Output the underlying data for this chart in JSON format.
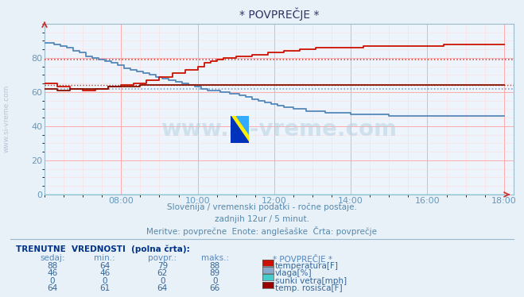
{
  "title": "* POVPREČJE *",
  "fig_bg_color": "#e8f0f8",
  "plot_bg_color": "#eef4fb",
  "grid_color_major": "#ffaaaa",
  "grid_color_minor": "#ffdddd",
  "tick_color": "#6699bb",
  "subtitle1": "Slovenija / vremenski podatki - ročne postaje.",
  "subtitle2": "zadnjih 12ur / 5 minut.",
  "subtitle3": "Meritve: povprečne  Enote: anglešaške  Črta: povprečje",
  "watermark": "www.si-vreme.com",
  "xmin": 6.0,
  "xmax": 18.25,
  "ymin": 0,
  "ymax": 100,
  "xticks": [
    8,
    10,
    12,
    14,
    16,
    18
  ],
  "yticks": [
    0,
    20,
    40,
    60,
    80
  ],
  "table_header": "TRENUTNE  VREDNOSTI  (polna črta):",
  "col_headers": [
    "sedaj:",
    "min.:",
    "povpr.:",
    "maks.:",
    "* POVPREČJE *"
  ],
  "rows": [
    [
      88,
      64,
      79,
      88,
      "temperatura[F]",
      "#cc1100"
    ],
    [
      46,
      46,
      62,
      89,
      "vlaga[%]",
      "#88aacc"
    ],
    [
      0,
      0,
      0,
      0,
      "sunki vetra[mph]",
      "#44cccc"
    ],
    [
      64,
      61,
      64,
      66,
      "temp. rosišča[F]",
      "#990000"
    ]
  ],
  "temp_color": "#cc1100",
  "vlaga_color": "#5588bb",
  "rosisce_color": "#881100",
  "sunki_color": "#00cccc",
  "temp_avg_dotted": 79,
  "vlaga_avg_dotted": 62,
  "rosisce_avg_dotted": 64,
  "side_label": "www.si-vreme.com",
  "arrow_color": "#cc3333",
  "title_color": "#333366",
  "subtitle_color": "#5588aa",
  "table_header_color": "#003388",
  "table_val_color": "#336699",
  "table_col_color": "#5588bb"
}
